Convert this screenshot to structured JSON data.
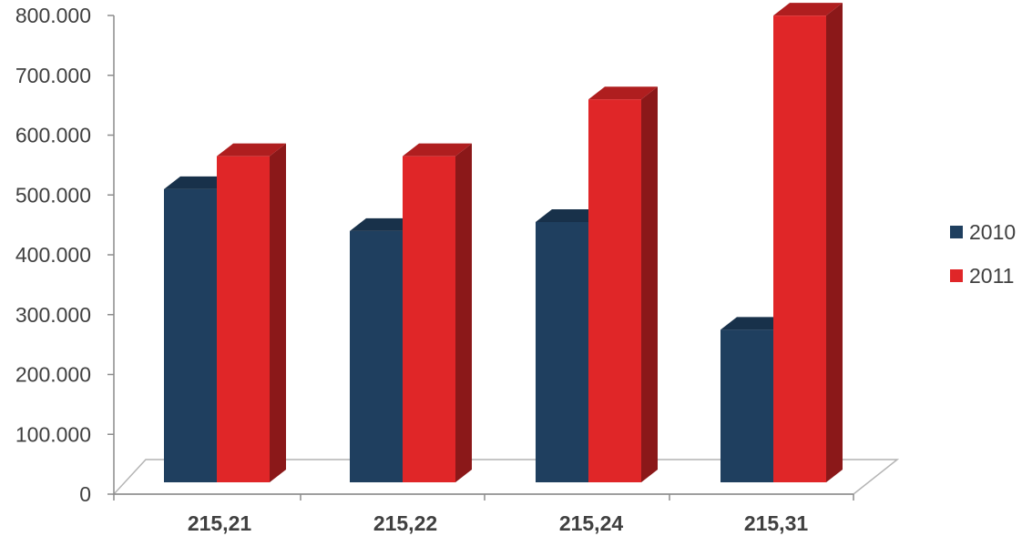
{
  "chart_data": {
    "type": "bar",
    "style": "3d-clustered-column",
    "categories": [
      "215,21",
      "215,22",
      "215,24",
      "215,31"
    ],
    "series": [
      {
        "name": "2010",
        "values": [
          490000,
          420000,
          435000,
          255000
        ],
        "color": "#1f3f5f"
      },
      {
        "name": "2011",
        "values": [
          545000,
          545000,
          640000,
          780000
        ],
        "color": "#e02628"
      }
    ],
    "ylim": [
      0,
      800000
    ],
    "yticks": [
      0,
      100000,
      200000,
      300000,
      400000,
      500000,
      600000,
      700000,
      800000
    ],
    "ytick_labels": [
      "0",
      "100.000",
      "200.000",
      "300.000",
      "400.000",
      "500.000",
      "600.000",
      "700.000",
      "800.000"
    ],
    "grid": false,
    "legend": "right",
    "title": "",
    "xlabel": "",
    "ylabel": ""
  }
}
